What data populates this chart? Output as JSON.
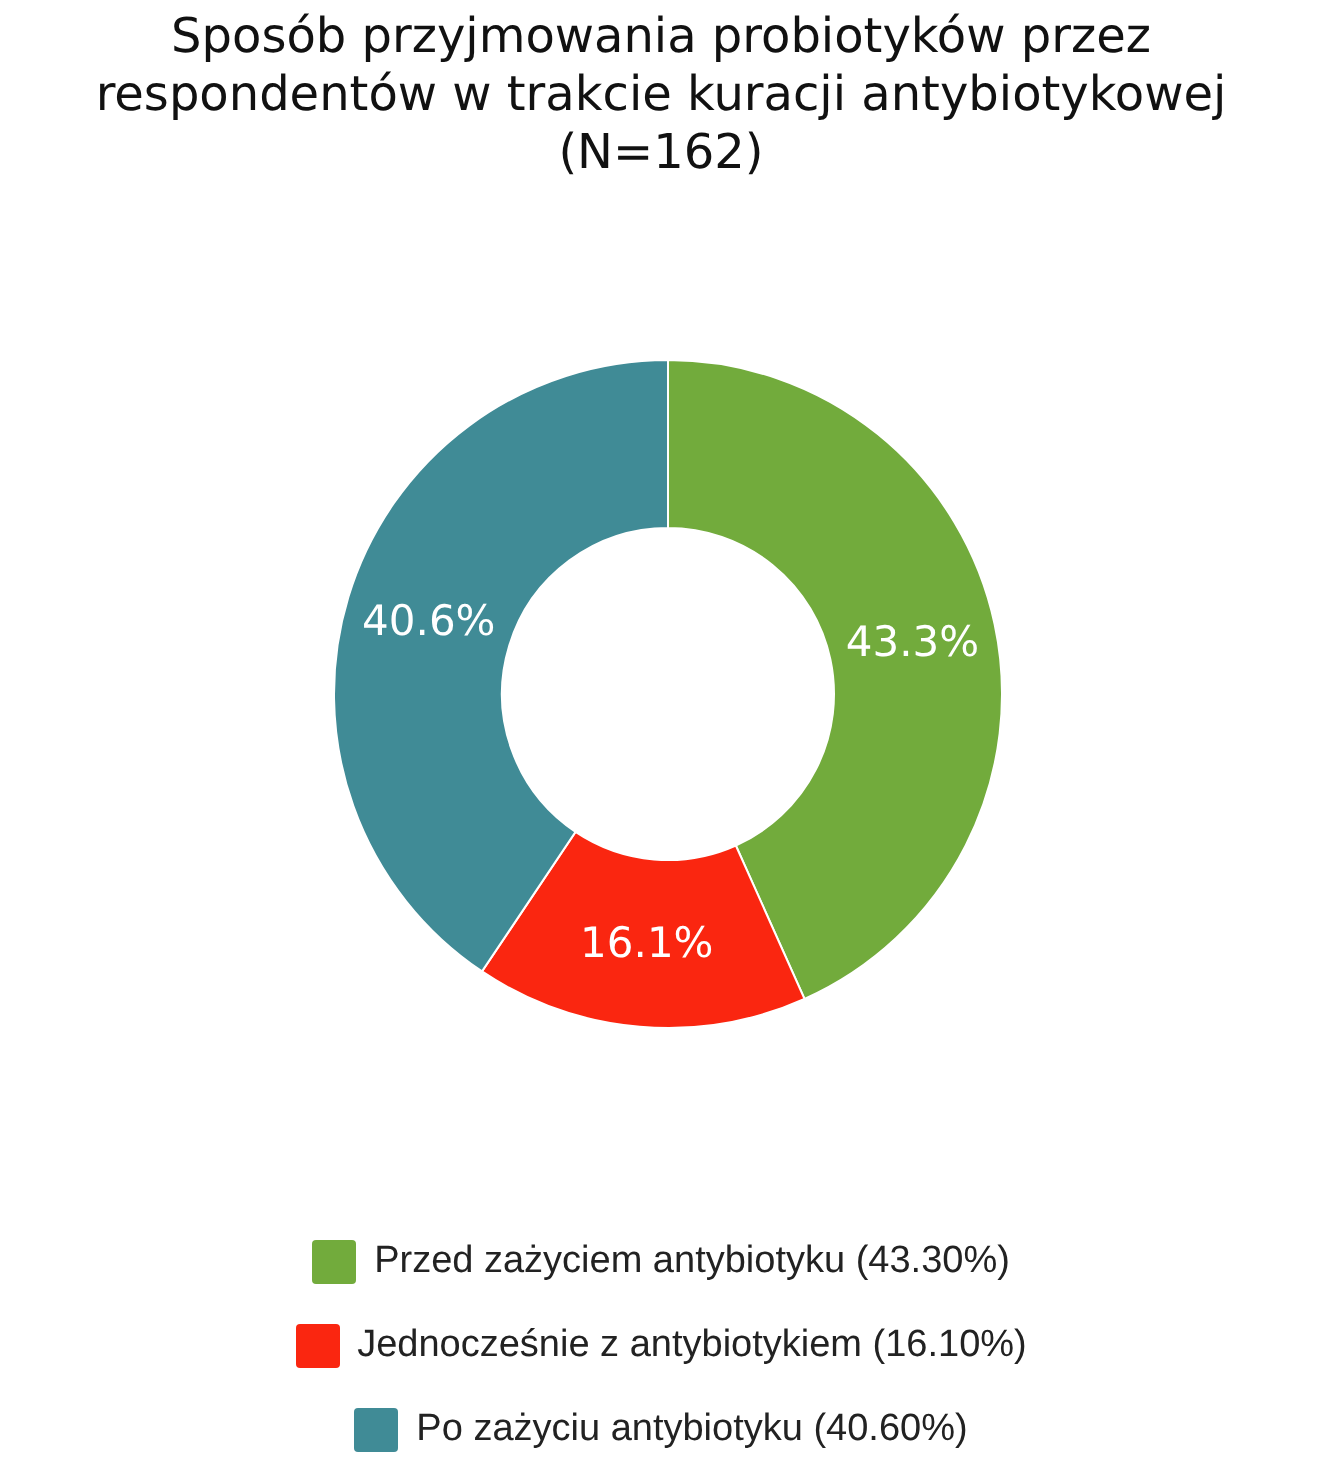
{
  "chart_data": {
    "type": "donut",
    "title": "Sposób przyjmowania probiotyków przez respondentów w trakcie kuracji antybiotykowej (N=162)",
    "categories": [
      "Przed zażyciem antybiotyku (43.30%)",
      "Jednocześnie z antybiotykiem (16.10%)",
      "Po zażyciu antybiotyku (40.60%)"
    ],
    "values": [
      43.3,
      16.1,
      40.6
    ],
    "colors": [
      "#72ab3c",
      "#fa2610",
      "#408b96"
    ],
    "value_labels": [
      "43.3%",
      "16.1%",
      "40.6%"
    ],
    "legend": "bottom"
  }
}
